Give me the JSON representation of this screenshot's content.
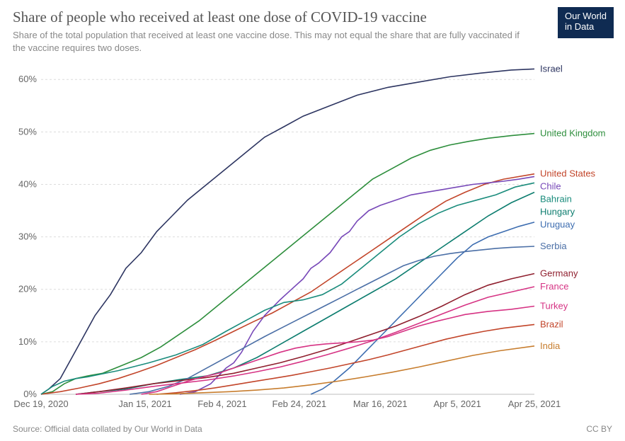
{
  "header": {
    "title": "Share of people who received at least one dose of COVID-19 vaccine",
    "subtitle": "Share of the total population that received at least one vaccine dose. This may not equal the share that are fully vaccinated if the vaccine requires two doses.",
    "logo_line1": "Our World",
    "logo_line2": "in Data"
  },
  "chart": {
    "type": "line",
    "background_color": "#ffffff",
    "grid_color": "#dcdcdc",
    "axis_color": "#bcbcbc",
    "text_color": "#666666",
    "ylim": [
      0,
      63
    ],
    "yticks": [
      0,
      10,
      20,
      30,
      40,
      50,
      60
    ],
    "ytick_labels": [
      "0%",
      "10%",
      "20%",
      "30%",
      "40%",
      "50%",
      "60%"
    ],
    "xlim": [
      0,
      128
    ],
    "xticks": [
      0,
      27,
      47,
      67,
      88,
      108,
      128
    ],
    "xtick_labels": [
      "Dec 19, 2020",
      "Jan 15, 2021",
      "Feb 4, 2021",
      "Feb 24, 2021",
      "Mar 16, 2021",
      "Apr 5, 2021",
      "Apr 25, 2021"
    ],
    "line_width": 1.6,
    "label_fontsize": 13,
    "series": [
      {
        "name": "Israel",
        "color": "#2d3561",
        "points": [
          [
            0,
            0
          ],
          [
            2,
            1
          ],
          [
            5,
            3
          ],
          [
            8,
            7
          ],
          [
            11,
            11
          ],
          [
            14,
            15
          ],
          [
            18,
            19
          ],
          [
            22,
            24
          ],
          [
            26,
            27
          ],
          [
            30,
            31
          ],
          [
            34,
            34
          ],
          [
            38,
            37
          ],
          [
            43,
            40
          ],
          [
            48,
            43
          ],
          [
            53,
            46
          ],
          [
            58,
            49
          ],
          [
            63,
            51
          ],
          [
            68,
            53
          ],
          [
            75,
            55
          ],
          [
            82,
            57
          ],
          [
            90,
            58.5
          ],
          [
            98,
            59.5
          ],
          [
            106,
            60.5
          ],
          [
            114,
            61.2
          ],
          [
            122,
            61.8
          ],
          [
            128,
            62
          ]
        ]
      },
      {
        "name": "United Kingdom",
        "color": "#2d8e3c",
        "points": [
          [
            0,
            0
          ],
          [
            3,
            0.5
          ],
          [
            6,
            2
          ],
          [
            9,
            3
          ],
          [
            12,
            3.5
          ],
          [
            16,
            4
          ],
          [
            21,
            5.5
          ],
          [
            26,
            7
          ],
          [
            31,
            9
          ],
          [
            36,
            11.5
          ],
          [
            41,
            14
          ],
          [
            46,
            17
          ],
          [
            51,
            20
          ],
          [
            56,
            23
          ],
          [
            61,
            26
          ],
          [
            66,
            29
          ],
          [
            71,
            32
          ],
          [
            76,
            35
          ],
          [
            81,
            38
          ],
          [
            86,
            41
          ],
          [
            91,
            43
          ],
          [
            96,
            45
          ],
          [
            101,
            46.5
          ],
          [
            106,
            47.5
          ],
          [
            111,
            48.2
          ],
          [
            116,
            48.8
          ],
          [
            122,
            49.3
          ],
          [
            128,
            49.7
          ]
        ]
      },
      {
        "name": "United States",
        "color": "#c2452a",
        "points": [
          [
            0,
            0
          ],
          [
            5,
            0.5
          ],
          [
            10,
            1.2
          ],
          [
            15,
            2
          ],
          [
            20,
            3
          ],
          [
            25,
            4.2
          ],
          [
            30,
            5.5
          ],
          [
            35,
            7
          ],
          [
            40,
            8.5
          ],
          [
            45,
            10.2
          ],
          [
            50,
            12
          ],
          [
            55,
            13.8
          ],
          [
            60,
            15.5
          ],
          [
            65,
            17.5
          ],
          [
            70,
            19.5
          ],
          [
            75,
            22
          ],
          [
            80,
            24.5
          ],
          [
            85,
            27
          ],
          [
            90,
            29.5
          ],
          [
            95,
            32
          ],
          [
            100,
            34.5
          ],
          [
            105,
            36.8
          ],
          [
            110,
            38.5
          ],
          [
            115,
            40
          ],
          [
            120,
            41
          ],
          [
            128,
            42
          ]
        ]
      },
      {
        "name": "Chile",
        "color": "#7748b8",
        "points": [
          [
            36,
            0
          ],
          [
            40,
            0.5
          ],
          [
            44,
            2
          ],
          [
            48,
            5
          ],
          [
            50,
            6
          ],
          [
            52,
            8
          ],
          [
            55,
            12
          ],
          [
            58,
            15
          ],
          [
            60,
            16.5
          ],
          [
            62,
            18
          ],
          [
            65,
            20
          ],
          [
            68,
            22
          ],
          [
            70,
            24
          ],
          [
            72,
            25
          ],
          [
            75,
            27
          ],
          [
            78,
            30
          ],
          [
            80,
            31
          ],
          [
            82,
            33
          ],
          [
            85,
            35
          ],
          [
            88,
            36
          ],
          [
            92,
            37
          ],
          [
            96,
            38
          ],
          [
            100,
            38.5
          ],
          [
            104,
            39
          ],
          [
            108,
            39.5
          ],
          [
            112,
            40
          ],
          [
            116,
            40.3
          ],
          [
            120,
            40.6
          ],
          [
            124,
            41
          ],
          [
            128,
            41.5
          ]
        ]
      },
      {
        "name": "Bahrain",
        "color": "#1a8c7c",
        "points": [
          [
            0,
            0
          ],
          [
            3,
            1.5
          ],
          [
            6,
            2.5
          ],
          [
            9,
            3
          ],
          [
            12,
            3.3
          ],
          [
            20,
            4.5
          ],
          [
            28,
            6
          ],
          [
            35,
            7.5
          ],
          [
            42,
            9.5
          ],
          [
            48,
            12
          ],
          [
            53,
            14
          ],
          [
            58,
            16
          ],
          [
            63,
            17.5
          ],
          [
            68,
            18
          ],
          [
            73,
            19
          ],
          [
            78,
            21
          ],
          [
            83,
            24
          ],
          [
            88,
            27
          ],
          [
            93,
            30
          ],
          [
            98,
            32.5
          ],
          [
            103,
            34.5
          ],
          [
            108,
            36
          ],
          [
            113,
            37
          ],
          [
            118,
            38
          ],
          [
            123,
            39.5
          ],
          [
            128,
            40.3
          ]
        ]
      },
      {
        "name": "Hungary",
        "color": "#0d7d6f",
        "points": [
          [
            9,
            0
          ],
          [
            15,
            0.5
          ],
          [
            22,
            1
          ],
          [
            29,
            2
          ],
          [
            36,
            2.8
          ],
          [
            43,
            3.5
          ],
          [
            50,
            5
          ],
          [
            56,
            7
          ],
          [
            62,
            9.5
          ],
          [
            68,
            12
          ],
          [
            74,
            14.5
          ],
          [
            80,
            17
          ],
          [
            86,
            19.5
          ],
          [
            92,
            22
          ],
          [
            98,
            25
          ],
          [
            104,
            28
          ],
          [
            110,
            31
          ],
          [
            116,
            34
          ],
          [
            122,
            36.5
          ],
          [
            128,
            38.5
          ]
        ]
      },
      {
        "name": "Uruguay",
        "color": "#3d6db0",
        "points": [
          [
            70,
            0
          ],
          [
            73,
            1
          ],
          [
            76,
            2.5
          ],
          [
            80,
            5
          ],
          [
            84,
            8
          ],
          [
            88,
            11
          ],
          [
            92,
            14
          ],
          [
            96,
            17
          ],
          [
            100,
            20
          ],
          [
            104,
            23
          ],
          [
            108,
            26
          ],
          [
            112,
            28.5
          ],
          [
            116,
            30
          ],
          [
            120,
            31
          ],
          [
            124,
            32
          ],
          [
            128,
            32.8
          ]
        ]
      },
      {
        "name": "Serbia",
        "color": "#4b6fa6",
        "points": [
          [
            23,
            0
          ],
          [
            28,
            0.5
          ],
          [
            33,
            1.5
          ],
          [
            38,
            3
          ],
          [
            43,
            5
          ],
          [
            48,
            7
          ],
          [
            53,
            9
          ],
          [
            58,
            11
          ],
          [
            62,
            12.5
          ],
          [
            66,
            14
          ],
          [
            70,
            15.5
          ],
          [
            74,
            17
          ],
          [
            78,
            18.5
          ],
          [
            82,
            20
          ],
          [
            86,
            21.5
          ],
          [
            90,
            23
          ],
          [
            94,
            24.5
          ],
          [
            98,
            25.5
          ],
          [
            102,
            26.3
          ],
          [
            106,
            26.8
          ],
          [
            110,
            27.2
          ],
          [
            114,
            27.5
          ],
          [
            118,
            27.8
          ],
          [
            122,
            28
          ],
          [
            128,
            28.2
          ]
        ]
      },
      {
        "name": "Germany",
        "color": "#8f1f2e",
        "points": [
          [
            9,
            0
          ],
          [
            15,
            0.5
          ],
          [
            22,
            1.2
          ],
          [
            29,
            2
          ],
          [
            36,
            2.6
          ],
          [
            43,
            3.2
          ],
          [
            50,
            4
          ],
          [
            56,
            5
          ],
          [
            62,
            6
          ],
          [
            68,
            7.2
          ],
          [
            74,
            8.5
          ],
          [
            80,
            10
          ],
          [
            86,
            11.5
          ],
          [
            92,
            13
          ],
          [
            98,
            14.8
          ],
          [
            104,
            16.8
          ],
          [
            110,
            19
          ],
          [
            116,
            20.8
          ],
          [
            122,
            22
          ],
          [
            128,
            23
          ]
        ]
      },
      {
        "name": "France",
        "color": "#d63384",
        "points": [
          [
            9,
            0
          ],
          [
            15,
            0.2
          ],
          [
            22,
            0.8
          ],
          [
            29,
            1.5
          ],
          [
            36,
            2.1
          ],
          [
            43,
            2.7
          ],
          [
            50,
            3.5
          ],
          [
            56,
            4.3
          ],
          [
            62,
            5.2
          ],
          [
            68,
            6.3
          ],
          [
            74,
            7.5
          ],
          [
            80,
            8.8
          ],
          [
            86,
            10.2
          ],
          [
            92,
            11.8
          ],
          [
            98,
            13.5
          ],
          [
            104,
            15.3
          ],
          [
            110,
            17
          ],
          [
            116,
            18.5
          ],
          [
            122,
            19.5
          ],
          [
            128,
            20.5
          ]
        ]
      },
      {
        "name": "Turkey",
        "color": "#d63384",
        "points": [
          [
            26,
            0
          ],
          [
            30,
            0.5
          ],
          [
            34,
            1.5
          ],
          [
            38,
            2.5
          ],
          [
            42,
            3.3
          ],
          [
            46,
            4
          ],
          [
            50,
            5
          ],
          [
            54,
            6
          ],
          [
            58,
            7
          ],
          [
            62,
            8
          ],
          [
            66,
            8.8
          ],
          [
            70,
            9.3
          ],
          [
            74,
            9.6
          ],
          [
            78,
            9.8
          ],
          [
            82,
            10
          ],
          [
            86,
            10.3
          ],
          [
            90,
            11
          ],
          [
            94,
            12
          ],
          [
            98,
            13
          ],
          [
            102,
            13.8
          ],
          [
            106,
            14.5
          ],
          [
            110,
            15.2
          ],
          [
            116,
            15.8
          ],
          [
            122,
            16.2
          ],
          [
            128,
            16.8
          ]
        ]
      },
      {
        "name": "Brazil",
        "color": "#c2452a",
        "points": [
          [
            30,
            0
          ],
          [
            35,
            0.3
          ],
          [
            40,
            0.7
          ],
          [
            45,
            1.2
          ],
          [
            50,
            1.8
          ],
          [
            55,
            2.4
          ],
          [
            60,
            3
          ],
          [
            65,
            3.6
          ],
          [
            70,
            4.3
          ],
          [
            75,
            5
          ],
          [
            80,
            5.8
          ],
          [
            85,
            6.6
          ],
          [
            90,
            7.5
          ],
          [
            95,
            8.5
          ],
          [
            100,
            9.5
          ],
          [
            105,
            10.5
          ],
          [
            110,
            11.3
          ],
          [
            115,
            12
          ],
          [
            120,
            12.6
          ],
          [
            128,
            13.3
          ]
        ]
      },
      {
        "name": "India",
        "color": "#c77d2e",
        "points": [
          [
            28,
            0
          ],
          [
            35,
            0.1
          ],
          [
            42,
            0.3
          ],
          [
            49,
            0.5
          ],
          [
            56,
            0.8
          ],
          [
            63,
            1.2
          ],
          [
            70,
            1.8
          ],
          [
            77,
            2.5
          ],
          [
            84,
            3.3
          ],
          [
            91,
            4.2
          ],
          [
            98,
            5.2
          ],
          [
            105,
            6.3
          ],
          [
            112,
            7.4
          ],
          [
            119,
            8.3
          ],
          [
            128,
            9.2
          ]
        ]
      }
    ]
  },
  "footer": {
    "source": "Source: Official data collated by Our World in Data",
    "license": "CC BY"
  }
}
